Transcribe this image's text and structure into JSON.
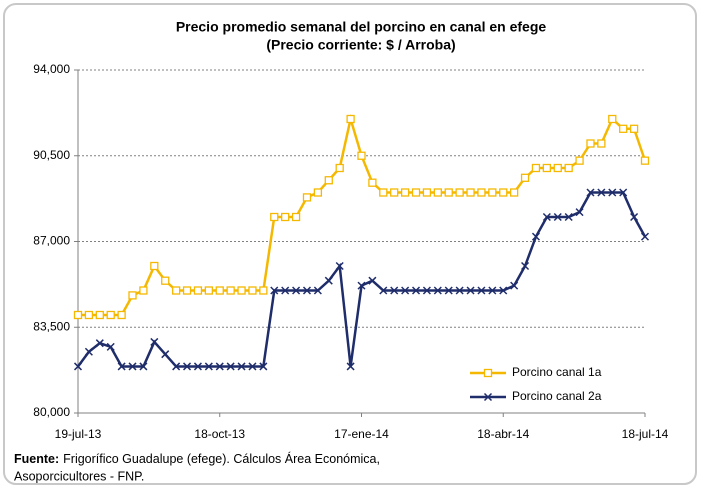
{
  "chart_data": {
    "type": "line",
    "title": "Precio promedio semanal del porcino en canal en efege",
    "subtitle": "(Precio corriente: $ / Arroba)",
    "categories": [
      "19-jul-13",
      null,
      null,
      null,
      null,
      null,
      null,
      null,
      null,
      null,
      null,
      null,
      null,
      "18-oct-13",
      null,
      null,
      null,
      null,
      null,
      null,
      null,
      null,
      null,
      null,
      null,
      null,
      "17-ene-14",
      null,
      null,
      null,
      null,
      null,
      null,
      null,
      null,
      null,
      null,
      null,
      null,
      "18-abr-14",
      null,
      null,
      null,
      null,
      null,
      null,
      null,
      null,
      null,
      null,
      null,
      null,
      "18-jul-14"
    ],
    "series": [
      {
        "name": "Porcino canal 1a",
        "color": "#f5b800",
        "marker": "square",
        "values": [
          84000,
          84000,
          84000,
          84000,
          84000,
          84800,
          85000,
          86000,
          85400,
          85000,
          85000,
          85000,
          85000,
          85000,
          85000,
          85000,
          85000,
          85000,
          88000,
          88000,
          88000,
          88800,
          89000,
          89500,
          90000,
          92000,
          90500,
          89400,
          89000,
          89000,
          89000,
          89000,
          89000,
          89000,
          89000,
          89000,
          89000,
          89000,
          89000,
          89000,
          89000,
          89600,
          90000,
          90000,
          90000,
          90000,
          90300,
          91000,
          91000,
          92000,
          91600,
          91600,
          90300
        ]
      },
      {
        "name": "Porcino canal 2a",
        "color": "#1f2d6b",
        "marker": "x",
        "values": [
          81900,
          82500,
          82850,
          82700,
          81900,
          81900,
          81900,
          82900,
          82400,
          81900,
          81900,
          81900,
          81900,
          81900,
          81900,
          81900,
          81900,
          81900,
          85000,
          85000,
          85000,
          85000,
          85000,
          85400,
          86000,
          81900,
          85200,
          85400,
          85000,
          85000,
          85000,
          85000,
          85000,
          85000,
          85000,
          85000,
          85000,
          85000,
          85000,
          85000,
          85200,
          86000,
          87200,
          88000,
          88000,
          88000,
          88200,
          89000,
          89000,
          89000,
          89000,
          88000,
          87200
        ]
      }
    ],
    "ylim": [
      80000,
      94000
    ],
    "yticks": [
      {
        "value": 80000,
        "label": "80,000"
      },
      {
        "value": 83500,
        "label": "83,500"
      },
      {
        "value": 87000,
        "label": "87,000"
      },
      {
        "value": 90500,
        "label": "90,500"
      },
      {
        "value": 94000,
        "label": "94,000"
      }
    ],
    "grid": true,
    "legend": "lower right",
    "source_label": "Fuente:",
    "source_text": "Frigorífico Guadalupe (efege). Cálculos Área Económica,",
    "source_text_2": "Asoporcicultores  - FNP."
  }
}
